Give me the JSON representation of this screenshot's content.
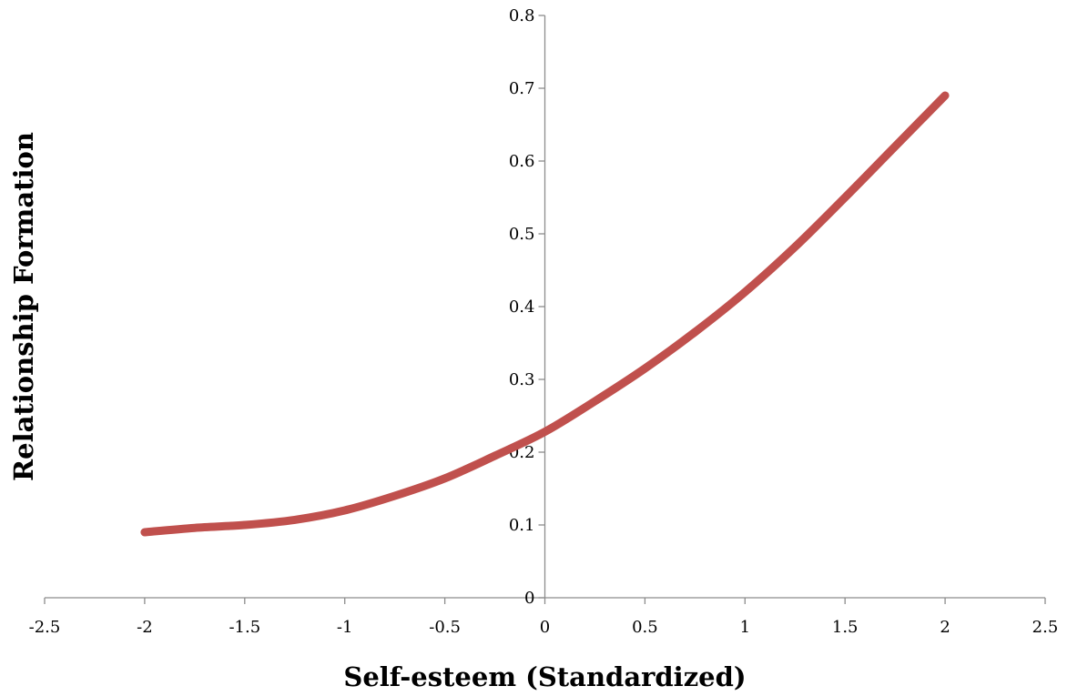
{
  "chart_data": {
    "type": "line",
    "title": "",
    "xlabel": "Self-esteem (Standardized)",
    "ylabel": "Relationship Formation",
    "xlim": [
      -2.5,
      2.5
    ],
    "ylim": [
      0,
      0.8
    ],
    "x_ticks": [
      -2.5,
      -2,
      -1.5,
      -1,
      -0.5,
      0,
      0.5,
      1,
      1.5,
      2,
      2.5
    ],
    "x_tick_labels": [
      "-2.5",
      "-2",
      "-1.5",
      "-1",
      "-0.5",
      "0",
      "0.5",
      "1",
      "1.5",
      "2",
      "2.5"
    ],
    "y_ticks": [
      0,
      0.1,
      0.2,
      0.3,
      0.4,
      0.5,
      0.6,
      0.7,
      0.8
    ],
    "y_tick_labels": [
      "0",
      "0.1",
      "0.2",
      "0.3",
      "0.4",
      "0.5",
      "0.6",
      "0.7",
      "0.8"
    ],
    "grid": false,
    "legend": "none",
    "axes_cross_at_origin": true,
    "series": [
      {
        "color": "#c0504d",
        "x": [
          -2,
          -1.75,
          -1.5,
          -1.25,
          -1,
          -0.75,
          -0.5,
          -0.25,
          0,
          0.25,
          0.5,
          0.75,
          1,
          1.25,
          1.5,
          1.75,
          2
        ],
        "y": [
          0.09,
          0.096,
          0.1,
          0.107,
          0.12,
          0.14,
          0.164,
          0.195,
          0.228,
          0.27,
          0.315,
          0.365,
          0.42,
          0.482,
          0.55,
          0.62,
          0.69
        ]
      }
    ]
  }
}
